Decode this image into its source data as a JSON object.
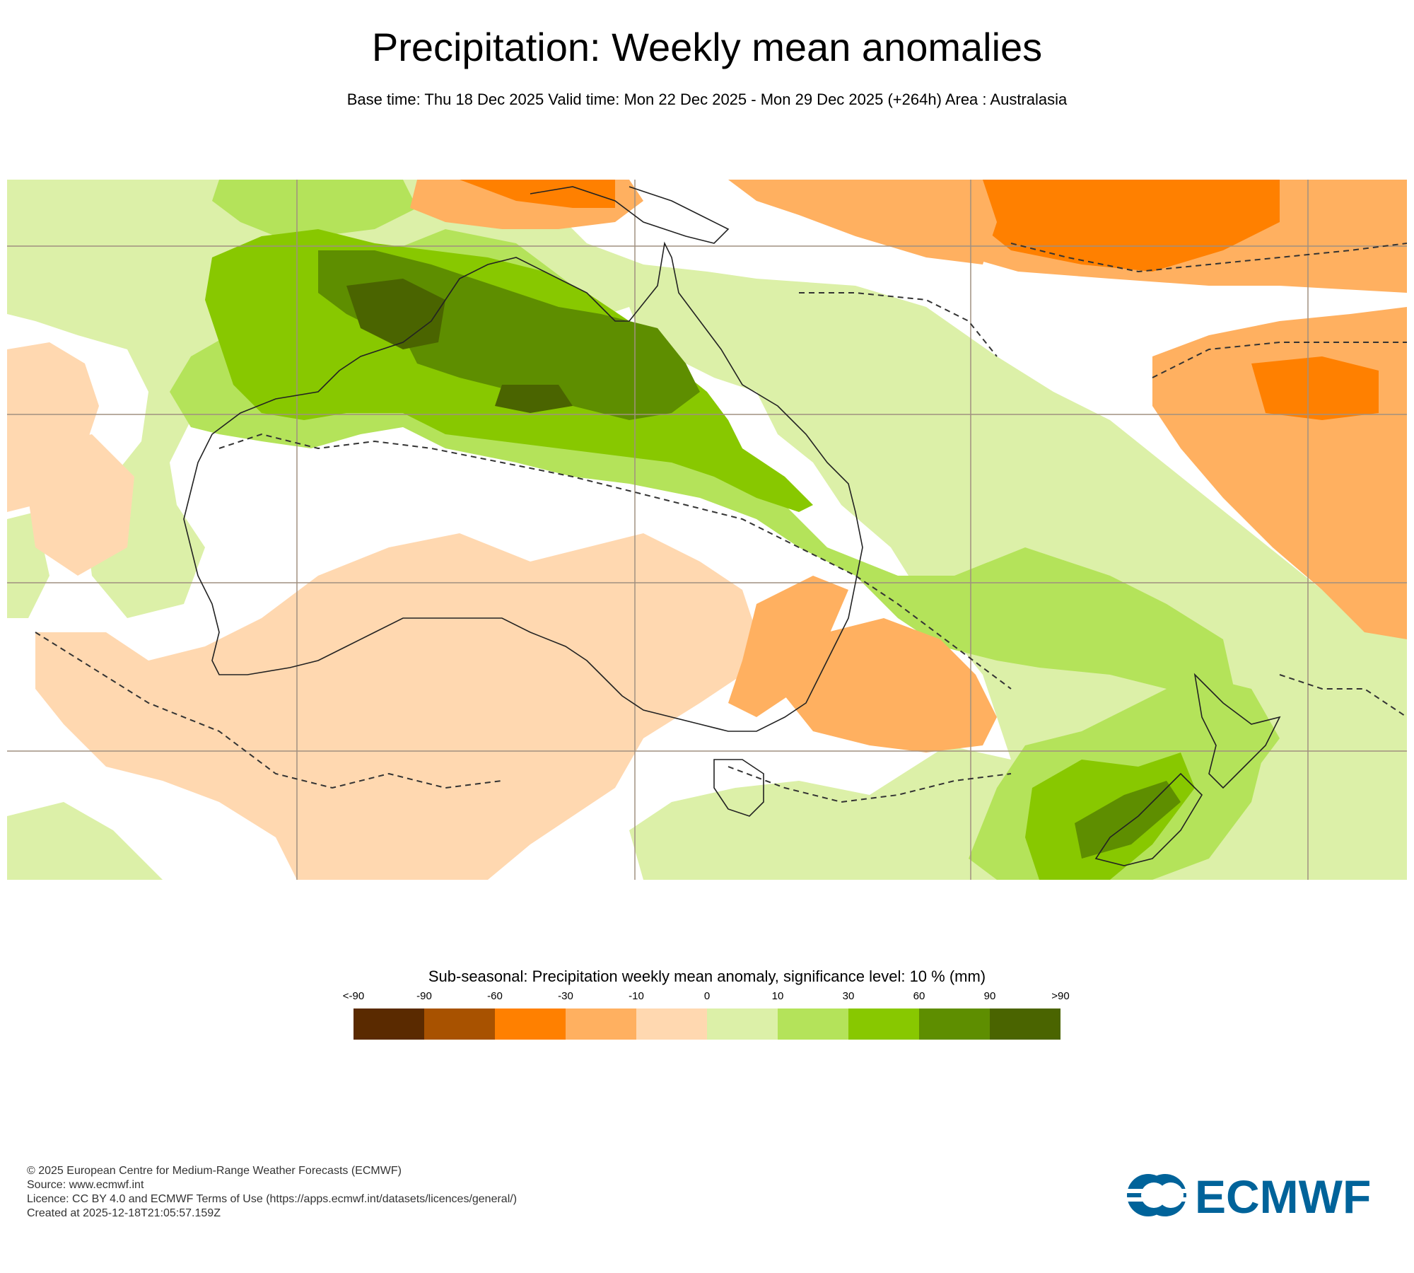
{
  "header": {
    "title": "Precipitation: Weekly mean anomalies",
    "subtitle": "Base time: Thu 18 Dec 2025 Valid time: Mon 22 Dec 2025 - Mon 29 Dec 2025 (+264h) Area : Australasia"
  },
  "legend": {
    "title": "Sub-seasonal: Precipitation weekly mean anomaly, significance level: 10 % (mm)",
    "ticks": [
      "<-90",
      "-90",
      "-60",
      "-30",
      "-10",
      "0",
      "10",
      "30",
      "60",
      "90",
      ">90"
    ],
    "colors": [
      "#5a2a00",
      "#a85200",
      "#ff8000",
      "#ffb060",
      "#ffd8b0",
      "#dcf0a8",
      "#b4e35a",
      "#88c800",
      "#5e8e00",
      "#4a6400"
    ]
  },
  "footer": {
    "copyright": "© 2025 European Centre for Medium-Range Weather Forecasts (ECMWF)",
    "source": "Source: www.ecmwf.int",
    "licence": "Licence: CC BY 4.0 and ECMWF Terms of Use (https://apps.ecmwf.int/datasets/licences/general/)",
    "created": "Created at 2025-12-18T21:05:57.159Z"
  },
  "logo": {
    "text": "ECMWF",
    "color": "#00639a"
  }
}
